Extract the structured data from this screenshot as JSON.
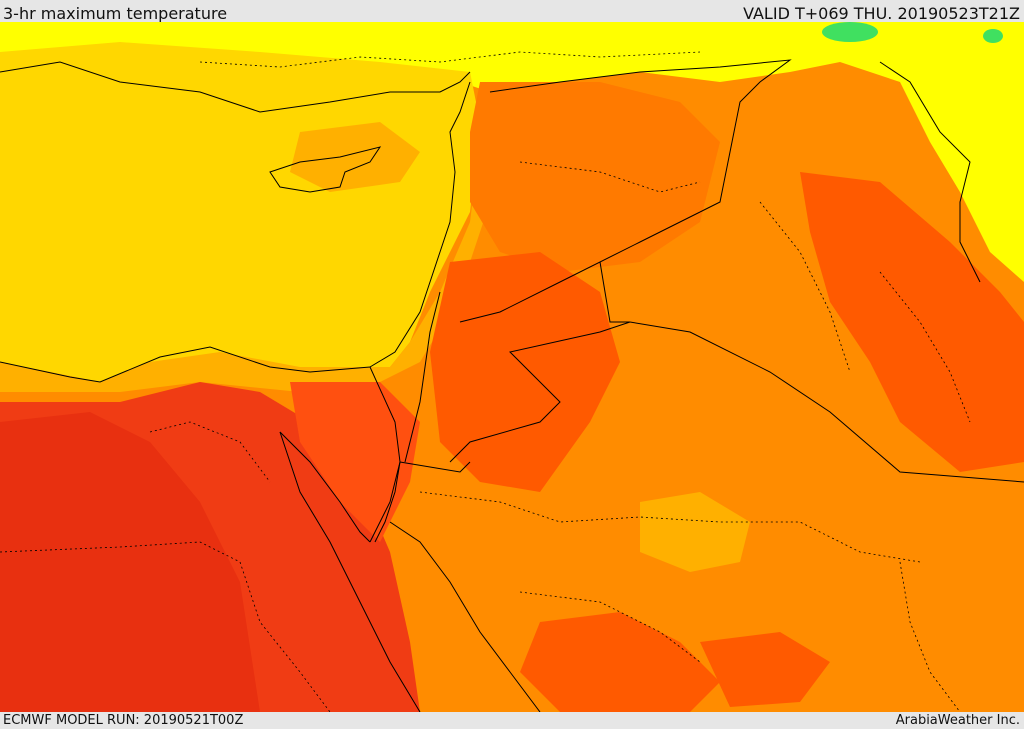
{
  "header": {
    "title": "3-hr maximum temperature",
    "valid": "VALID T+069 THU. 20190523T21Z"
  },
  "footer": {
    "model_run": "ECMWF MODEL RUN: 20190521T00Z",
    "credit": "ArabiaWeather Inc."
  },
  "colors": {
    "yellow": "#ffff00",
    "gold": "#ffd700",
    "amber": "#ffb000",
    "orange": "#ff8c00",
    "dark_orange": "#ff5a00",
    "red": "#f03c14",
    "green": "#40e060",
    "border": "#000000"
  }
}
